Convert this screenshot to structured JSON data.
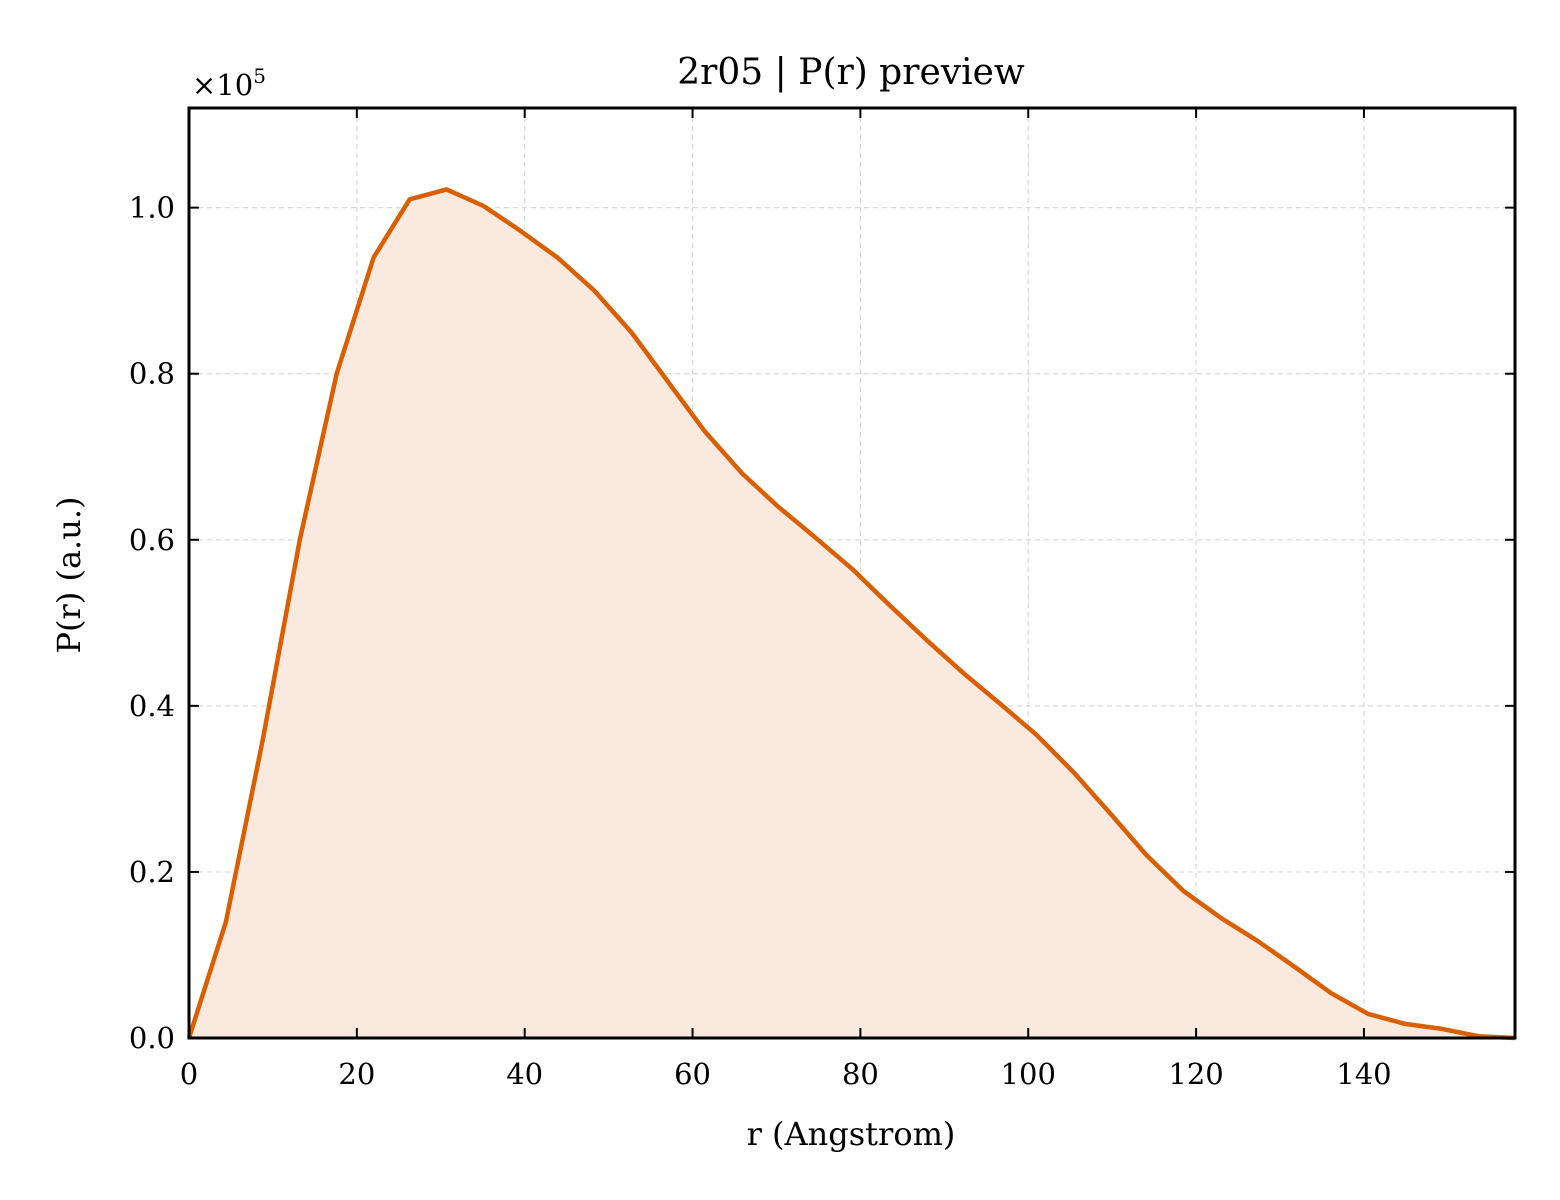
{
  "chart_data": {
    "type": "area",
    "title": "2r05 | P(r) preview",
    "xlabel": "r (Angstrom)",
    "ylabel": "P(r) (a.u.)",
    "y_multiplier": "×10",
    "y_multiplier_exp": "5",
    "xlim": [
      0,
      158
    ],
    "ylim": [
      0,
      1.12
    ],
    "grid": true,
    "legend": "none",
    "x_ticks": [
      0,
      20,
      40,
      60,
      80,
      100,
      120,
      140
    ],
    "x_tick_labels": [
      "0",
      "20",
      "40",
      "60",
      "80",
      "100",
      "120",
      "140"
    ],
    "y_ticks": [
      0,
      0.2,
      0.4,
      0.6,
      0.8,
      1.0
    ],
    "y_tick_labels": [
      "0.0",
      "0.2",
      "0.4",
      "0.6",
      "0.8",
      "1.0"
    ],
    "line_color": "#d95f02",
    "fill_color": "#f9e9de",
    "series": [
      {
        "x": [
          0,
          4.4,
          8.8,
          13.2,
          17.6,
          22.0,
          26.3,
          30.7,
          35.1,
          39.5,
          43.9,
          48.3,
          52.7,
          57.1,
          61.5,
          65.9,
          70.2,
          74.6,
          79.0,
          83.4,
          87.8,
          92.2,
          96.6,
          101.0,
          105.4,
          109.8,
          114.1,
          118.5,
          122.9,
          127.3,
          131.7,
          136.1,
          140.5,
          144.9,
          149.3,
          153.7,
          158.0
        ],
        "y": [
          0.0,
          0.14,
          0.36,
          0.6,
          0.8,
          0.94,
          1.01,
          1.022,
          1.002,
          0.972,
          0.94,
          0.9,
          0.85,
          0.79,
          0.73,
          0.68,
          0.64,
          0.603,
          0.565,
          0.522,
          0.48,
          0.44,
          0.403,
          0.365,
          0.32,
          0.27,
          0.22,
          0.177,
          0.145,
          0.117,
          0.086,
          0.054,
          0.029,
          0.017,
          0.011,
          0.002,
          0.0
        ]
      }
    ]
  }
}
